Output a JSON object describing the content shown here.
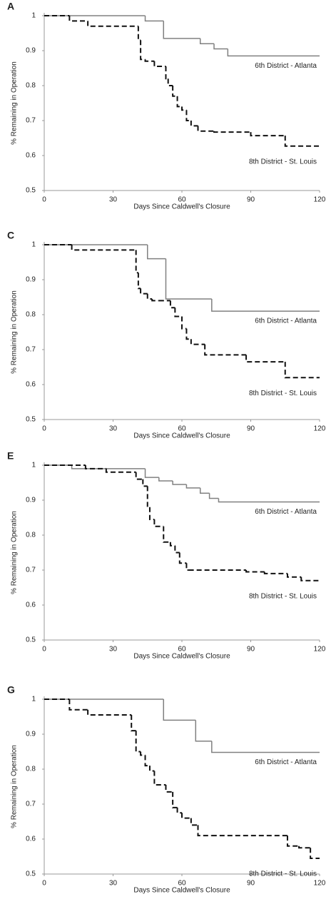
{
  "chart_data": [
    {
      "type": "step",
      "title": "A",
      "xlabel": "Days Since Caldwell's Closure",
      "ylabel": "% Remaining in Operation",
      "xlim": [
        0,
        120
      ],
      "xticks": [
        0,
        30,
        60,
        90,
        120
      ],
      "ylim": [
        0.5,
        1
      ],
      "yticks": [
        0.5,
        0.6,
        0.7,
        0.8,
        0.9,
        1
      ],
      "series": [
        {
          "name": "6th District - Atlanta",
          "color": "#808080",
          "dashed": false,
          "x": [
            0,
            44,
            52,
            68,
            74,
            80
          ],
          "values": [
            1,
            0.985,
            0.935,
            0.92,
            0.905,
            0.885
          ]
        },
        {
          "name": "8th District - St. Louis",
          "color": "#111111",
          "dashed": true,
          "x": [
            0,
            11,
            19,
            41,
            42,
            44,
            48,
            53,
            54,
            56,
            58,
            60,
            62,
            64,
            67,
            74,
            90,
            105
          ],
          "values": [
            1,
            0.985,
            0.97,
            0.93,
            0.875,
            0.87,
            0.855,
            0.82,
            0.8,
            0.77,
            0.74,
            0.73,
            0.7,
            0.685,
            0.67,
            0.667,
            0.657,
            0.627
          ]
        }
      ]
    },
    {
      "type": "step",
      "title": "C",
      "xlabel": "Days Since Caldwell's Closure",
      "ylabel": "% Remaining in Operation",
      "xlim": [
        0,
        120
      ],
      "xticks": [
        0,
        30,
        60,
        90,
        120
      ],
      "ylim": [
        0.5,
        1
      ],
      "yticks": [
        0.5,
        0.6,
        0.7,
        0.8,
        0.9,
        1
      ],
      "series": [
        {
          "name": "6th District - Atlanta",
          "color": "#808080",
          "dashed": false,
          "x": [
            0,
            45,
            53,
            73
          ],
          "values": [
            1,
            0.96,
            0.845,
            0.81
          ]
        },
        {
          "name": "8th District - St. Louis",
          "color": "#111111",
          "dashed": true,
          "x": [
            0,
            12,
            40,
            41,
            42,
            45,
            47,
            50,
            55,
            57,
            60,
            62,
            64,
            70,
            88,
            105
          ],
          "values": [
            1,
            0.985,
            0.92,
            0.875,
            0.86,
            0.845,
            0.84,
            0.84,
            0.82,
            0.795,
            0.76,
            0.73,
            0.715,
            0.685,
            0.665,
            0.62
          ]
        }
      ]
    },
    {
      "type": "step",
      "title": "E",
      "xlabel": "Days Since Caldwell's Closure",
      "ylabel": "% Remaining in Operation",
      "xlim": [
        0,
        120
      ],
      "xticks": [
        0,
        30,
        60,
        90,
        120
      ],
      "ylim": [
        0.5,
        1
      ],
      "yticks": [
        0.5,
        0.6,
        0.7,
        0.8,
        0.9,
        1
      ],
      "series": [
        {
          "name": "6th District - Atlanta",
          "color": "#808080",
          "dashed": false,
          "x": [
            0,
            12,
            44,
            50,
            56,
            62,
            68,
            72,
            76
          ],
          "values": [
            1,
            0.99,
            0.965,
            0.955,
            0.945,
            0.935,
            0.92,
            0.905,
            0.895
          ]
        },
        {
          "name": "8th District - St. Louis",
          "color": "#111111",
          "dashed": true,
          "x": [
            0,
            18,
            27,
            40,
            43,
            45,
            46,
            48,
            52,
            55,
            57,
            59,
            62,
            63,
            88,
            96,
            106,
            112
          ],
          "values": [
            1,
            0.99,
            0.98,
            0.96,
            0.94,
            0.88,
            0.845,
            0.825,
            0.78,
            0.77,
            0.75,
            0.72,
            0.7,
            0.7,
            0.695,
            0.69,
            0.68,
            0.67
          ]
        }
      ]
    },
    {
      "type": "step",
      "title": "G",
      "xlabel": "Days Since Caldwell's Closure",
      "ylabel": "% Remaining in Operation",
      "xlim": [
        0,
        120
      ],
      "xticks": [
        0,
        30,
        60,
        90,
        120
      ],
      "ylim": [
        0.5,
        1
      ],
      "yticks": [
        0.5,
        0.6,
        0.7,
        0.8,
        0.9,
        1
      ],
      "series": [
        {
          "name": "6th District - Atlanta",
          "color": "#808080",
          "dashed": false,
          "x": [
            0,
            52,
            66,
            73
          ],
          "values": [
            1,
            0.94,
            0.88,
            0.848
          ]
        },
        {
          "name": "8th District - St. Louis",
          "color": "#111111",
          "dashed": true,
          "x": [
            0,
            11,
            19,
            38,
            40,
            42,
            44,
            46,
            48,
            53,
            56,
            58,
            60,
            64,
            67,
            73,
            106,
            111,
            116
          ],
          "values": [
            1,
            0.97,
            0.955,
            0.91,
            0.85,
            0.84,
            0.81,
            0.795,
            0.755,
            0.735,
            0.69,
            0.675,
            0.66,
            0.64,
            0.61,
            0.61,
            0.58,
            0.575,
            0.545
          ]
        }
      ]
    }
  ]
}
